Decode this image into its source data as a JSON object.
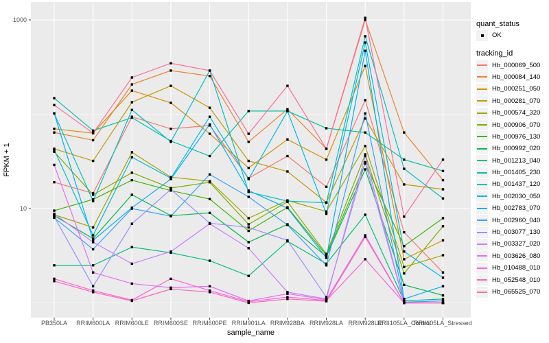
{
  "chart_data": {
    "type": "line",
    "title": "",
    "xlabel": "sample_name",
    "ylabel": "FPKM + 1",
    "y_scale": "log10",
    "y_tick_labels": [
      "1000",
      "10"
    ],
    "y_tick_values": [
      1000,
      10
    ],
    "y_minor_values": [
      100,
      1
    ],
    "ylim": [
      0.72,
      1470
    ],
    "grid": true,
    "legend_position": "right",
    "point_color": "#000000",
    "point_shape": "square-dot",
    "categories": [
      "PB350LA",
      "RRIM600LA",
      "RRIM600LE",
      "RRIM600SE",
      "RRIM600PE",
      "RRIM901LA",
      "RRIM928BA",
      "RRIM928LA",
      "RRIM928LE",
      "RRII105LA_Control",
      "RRII105LA_Stressed"
    ],
    "series": [
      {
        "name": "Hb_000069_500",
        "color": "#F8766D",
        "values": [
          19,
          14.5,
          94,
          70,
          76,
          21,
          36,
          17,
          141,
          5.6,
          2.1
        ]
      },
      {
        "name": "Hb_000084_140",
        "color": "#EA8331",
        "values": [
          64,
          53,
          207,
          290,
          254,
          51,
          113,
          43,
          1000,
          64,
          20
        ]
      },
      {
        "name": "Hb_000251_050",
        "color": "#D89000",
        "values": [
          70,
          63,
          178,
          132,
          62,
          27,
          54,
          33,
          325,
          2.9,
          4.6
        ]
      },
      {
        "name": "Hb_000281_070",
        "color": "#C09B00",
        "values": [
          43,
          32,
          134,
          200,
          117,
          32,
          24.7,
          11.6,
          90,
          18,
          16
        ]
      },
      {
        "name": "Hb_000574_320",
        "color": "#A3A500",
        "values": [
          8.6,
          6.3,
          39.5,
          21.5,
          19.5,
          7.9,
          12.2,
          9.3,
          46,
          2.4,
          3.2
        ]
      },
      {
        "name": "Hb_000906_070",
        "color": "#7CAE00",
        "values": [
          40,
          14,
          24,
          16.5,
          19,
          6.8,
          11.8,
          3.3,
          37.5,
          2.05,
          6.5
        ]
      },
      {
        "name": "Hb_000976_130",
        "color": "#39B600",
        "values": [
          9.5,
          12.5,
          20,
          15.5,
          12.6,
          5.8,
          10.3,
          3.2,
          30,
          4.0,
          7.9
        ]
      },
      {
        "name": "Hb_000992_020",
        "color": "#00BB4E",
        "values": [
          8.4,
          4.8,
          14,
          8.4,
          9.0,
          4.4,
          6.8,
          3.1,
          26,
          1.55,
          1.2
        ]
      },
      {
        "name": "Hb_001213_040",
        "color": "#00BF7D",
        "values": [
          2.5,
          2.5,
          3.9,
          3.4,
          2.8,
          1.93,
          4.5,
          2.6,
          8.6,
          1.05,
          1.1
        ]
      },
      {
        "name": "Hb_001405_230",
        "color": "#00C1A3",
        "values": [
          148,
          67,
          92,
          52,
          36,
          108,
          108,
          71,
          64,
          33,
          25
        ]
      },
      {
        "name": "Hb_001437_120",
        "color": "#00BFC4",
        "values": [
          102,
          12,
          111,
          51,
          290,
          15,
          12,
          11.5,
          670,
          26.4,
          12.8
        ]
      },
      {
        "name": "Hb_002030_050",
        "color": "#00BAE0",
        "values": [
          42,
          5.2,
          35,
          21,
          94,
          20.5,
          108,
          8.8,
          575,
          3.5,
          1.85
        ]
      },
      {
        "name": "Hb_002783_070",
        "color": "#00B0F6",
        "values": [
          102,
          4.6,
          10.2,
          20.5,
          78,
          15.5,
          10.1,
          3.0,
          470,
          1.1,
          1.5
        ]
      },
      {
        "name": "Hb_002960_040",
        "color": "#35A2FF",
        "values": [
          8.0,
          3.7,
          10,
          8.3,
          23,
          13.3,
          6.7,
          2.5,
          102,
          1.02,
          1.05
        ]
      },
      {
        "name": "Hb_003077_130",
        "color": "#9590FF",
        "values": [
          8.2,
          1.5,
          6.9,
          16,
          7.0,
          6.3,
          4.6,
          1.15,
          31,
          1.0,
          1.0
        ]
      },
      {
        "name": "Hb_003327_020",
        "color": "#C77CFF",
        "values": [
          8.8,
          4.4,
          2.6,
          3.5,
          6.9,
          3.8,
          1.3,
          1.1,
          36,
          1.0,
          1.0
        ]
      },
      {
        "name": "Hb_003626_080",
        "color": "#E76BF3",
        "values": [
          29,
          2.1,
          1.6,
          1.45,
          1.5,
          1.05,
          1.25,
          1.08,
          5.2,
          1.0,
          1.0
        ]
      },
      {
        "name": "Hb_010488_010",
        "color": "#FA62DB",
        "values": [
          1.8,
          1.35,
          1.07,
          1.8,
          1.35,
          1.03,
          1.15,
          1.06,
          2.9,
          1.0,
          1.0
        ]
      },
      {
        "name": "Hb_052548_010",
        "color": "#FF62BC",
        "values": [
          1.7,
          1.3,
          1.05,
          1.4,
          1.3,
          1.0,
          1.1,
          1.04,
          5.0,
          1.0,
          1.0
        ]
      },
      {
        "name": "Hb_065525_070",
        "color": "#FF6A98",
        "values": [
          125,
          63,
          245,
          347,
          290,
          62,
          200,
          43,
          1050,
          8.2,
          33
        ]
      }
    ]
  },
  "legend": {
    "quant_status": {
      "title": "quant_status",
      "items": [
        {
          "label": "OK",
          "symbol": "black-point"
        }
      ]
    },
    "tracking_id": {
      "title": "tracking_id"
    }
  },
  "panel": {
    "bg": "#EBEBEB",
    "grid_color": "#FFFFFF",
    "axis_text_color": "#4D4D4D",
    "tick_color": "#333333",
    "legend_key_bg": "#F2F2F2"
  }
}
